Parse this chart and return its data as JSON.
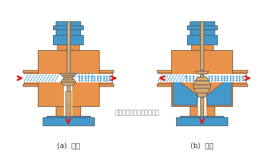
{
  "bg_color": "#ffffff",
  "orange": "#E8924A",
  "blue": "#4499CC",
  "tan": "#D4A870",
  "tan_light": "#E8C890",
  "red": "#DD2020",
  "white": "#FFFFFF",
  "outline": "#555555",
  "title_a": "(a)  分流",
  "title_b": "(b)  合流",
  "watermark": "多仪阀门（上海）有限公司",
  "fig_width": 4.0,
  "fig_height": 2.3,
  "dpi": 100
}
